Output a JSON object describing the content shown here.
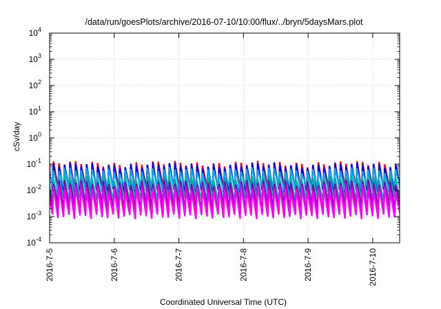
{
  "chart_data": {
    "type": "line",
    "title": "/data/run/goesPlots/archive/2016-07-10/10:00/flux/../bryn/5daysMars.plot",
    "xlabel": "Coordinated Universal Time (UTC)",
    "ylabel": "cSv/day",
    "y_scale": "log",
    "ylim": [
      0.0001,
      10000
    ],
    "xlim": [
      "2016-07-05T00:00",
      "2016-07-10T10:00"
    ],
    "x_ticks": [
      "2016-7-5",
      "2016-7-6",
      "2016-7-7",
      "2016-7-8",
      "2016-7-9",
      "2016-7-10"
    ],
    "y_ticks": [
      {
        "value": 0.0001,
        "base": "10",
        "exp": "-4"
      },
      {
        "value": 0.001,
        "base": "10",
        "exp": "-3"
      },
      {
        "value": 0.01,
        "base": "10",
        "exp": "-2"
      },
      {
        "value": 0.1,
        "base": "10",
        "exp": "-1"
      },
      {
        "value": 1,
        "base": "10",
        "exp": "0"
      },
      {
        "value": 10,
        "base": "10",
        "exp": "1"
      },
      {
        "value": 100,
        "base": "10",
        "exp": "2"
      },
      {
        "value": 1000,
        "base": "10",
        "exp": "3"
      },
      {
        "value": 10000,
        "base": "10",
        "exp": "4"
      }
    ],
    "grid": true,
    "legend": "none",
    "sawtooth_period_hours": 2.05,
    "series": [
      {
        "color": "#ff0000",
        "peak": 0.105,
        "trough": 0.011
      },
      {
        "color": "#0000ff",
        "peak": 0.09,
        "trough": 0.009
      },
      {
        "color": "#00aaee",
        "peak": 0.06,
        "trough": 0.012
      },
      {
        "color": "#00b3a0",
        "peak": 0.03,
        "trough": 0.0045
      },
      {
        "color": "#8800aa",
        "peak": 0.02,
        "trough": 0.0022
      },
      {
        "color": "#cc00cc",
        "peak": 0.014,
        "trough": 0.0014
      },
      {
        "color": "#ff00ff",
        "peak": 0.011,
        "trough": 0.001
      }
    ]
  }
}
